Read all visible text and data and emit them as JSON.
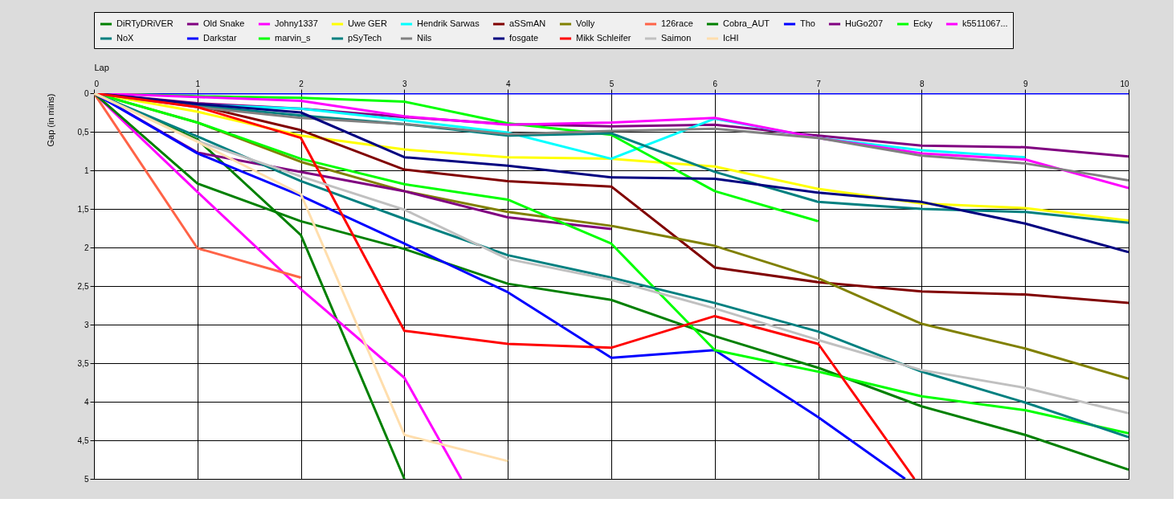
{
  "chart_data": {
    "type": "line",
    "xlabel": "Lap",
    "ylabel": "Gap (in mins)",
    "x": [
      0,
      1,
      2,
      3,
      4,
      5,
      6,
      7,
      8,
      9,
      10
    ],
    "xlim": [
      0,
      10
    ],
    "xticks": [
      0,
      1,
      2,
      3,
      4,
      5,
      6,
      7,
      8,
      9,
      10
    ],
    "ylim": [
      5,
      0
    ],
    "yticks": [
      0,
      {
        "value": 0.5,
        "label": "0,5"
      },
      1,
      {
        "value": 1.5,
        "label": "1,5"
      },
      2,
      {
        "value": 2.5,
        "label": "2,5"
      },
      3,
      {
        "value": 3.5,
        "label": "3,5"
      },
      4,
      {
        "value": 4.5,
        "label": "4,5"
      },
      5
    ],
    "grid": true,
    "legend": "top",
    "marker": "none",
    "line_style": "solid",
    "series": [
      {
        "name": "DiRTyDRiVER",
        "color": "#008000",
        "x": [
          0,
          1,
          2,
          3
        ],
        "values": [
          0,
          0.6,
          1.84,
          5
        ]
      },
      {
        "name": "Old Snake",
        "color": "#800080",
        "values": [
          0,
          0.13,
          0.2,
          0.31,
          0.4,
          0.43,
          0.41,
          0.55,
          0.68,
          0.7,
          0.82
        ]
      },
      {
        "name": "Johny1337",
        "color": "#ff00ff",
        "x": [
          0,
          1,
          2,
          3,
          3.55
        ],
        "values": [
          0,
          1.28,
          2.54,
          3.69,
          5
        ]
      },
      {
        "name": "Uwe GER",
        "color": "#ffff00",
        "values": [
          0,
          0.24,
          0.55,
          0.73,
          0.83,
          0.85,
          0.95,
          1.24,
          1.43,
          1.49,
          1.65
        ]
      },
      {
        "name": "Hendrik Sarwas",
        "color": "#00ffff",
        "values": [
          0,
          0.15,
          0.2,
          0.35,
          0.51,
          0.85,
          0.33,
          0.58,
          0.74,
          0.83,
          null
        ]
      },
      {
        "name": "aSSmAN",
        "color": "#800000",
        "values": [
          0,
          0.16,
          0.48,
          0.99,
          1.14,
          1.21,
          2.26,
          2.45,
          2.57,
          2.61,
          2.72
        ]
      },
      {
        "name": "Volly",
        "color": "#808000",
        "values": [
          0,
          0.38,
          0.89,
          1.27,
          1.54,
          1.72,
          1.98,
          2.4,
          2.99,
          3.31,
          3.7
        ]
      },
      {
        "name": "126race",
        "color": "#ff6347",
        "values": [
          0,
          2.01,
          2.39,
          null,
          null,
          null,
          null,
          null,
          null,
          null,
          null
        ]
      },
      {
        "name": "Cobra_AUT",
        "color": "#008000",
        "values": [
          0,
          1.17,
          1.66,
          2.02,
          2.47,
          2.68,
          3.15,
          3.56,
          4.06,
          4.43,
          4.88
        ]
      },
      {
        "name": "Tho",
        "color": "#0000ff",
        "values": [
          0,
          0,
          0,
          0,
          0,
          0,
          0,
          0,
          0,
          0,
          0
        ]
      },
      {
        "name": "HuGo207",
        "color": "#800080",
        "values": [
          0,
          0.77,
          1.02,
          1.27,
          1.61,
          1.76,
          null,
          null,
          null,
          null,
          null
        ]
      },
      {
        "name": "Ecky",
        "color": "#00ff00",
        "values": [
          0,
          0.04,
          0.06,
          0.11,
          0.39,
          0.54,
          1.27,
          1.66,
          null,
          null,
          null
        ]
      },
      {
        "name": "k5511067...",
        "color": "#ff00ff",
        "values": [
          0,
          0.05,
          0.1,
          0.3,
          0.41,
          0.38,
          0.32,
          0.58,
          0.78,
          0.86,
          1.23
        ]
      },
      {
        "name": "NoX",
        "color": "#008080",
        "values": [
          0,
          0.16,
          0.29,
          0.4,
          0.55,
          0.52,
          1.02,
          1.41,
          1.5,
          1.54,
          1.68
        ]
      },
      {
        "name": "Darkstar",
        "color": "#0000ff",
        "x": [
          0,
          1,
          2,
          3,
          4,
          5,
          6,
          7,
          7.84
        ],
        "values": [
          0,
          0.78,
          1.33,
          1.95,
          2.58,
          3.43,
          3.33,
          4.2,
          5
        ]
      },
      {
        "name": "marvin_s",
        "color": "#00ff00",
        "values": [
          0,
          0.38,
          0.85,
          1.18,
          1.38,
          1.95,
          3.33,
          3.61,
          3.93,
          4.11,
          4.41
        ]
      },
      {
        "name": "pSyTech",
        "color": "#008080",
        "values": [
          0,
          0.56,
          1.14,
          1.63,
          2.1,
          2.39,
          2.72,
          3.09,
          3.61,
          4.01,
          4.46
        ]
      },
      {
        "name": "Nils",
        "color": "#808080",
        "values": [
          0,
          0.18,
          0.32,
          0.4,
          0.53,
          0.49,
          0.46,
          0.58,
          0.81,
          0.91,
          1.13
        ]
      },
      {
        "name": "fosgate",
        "color": "#000080",
        "values": [
          0,
          0.14,
          0.25,
          0.83,
          0.94,
          1.09,
          1.11,
          1.29,
          1.41,
          1.69,
          2.06
        ]
      },
      {
        "name": "Mikk Schleifer",
        "color": "#ff0000",
        "x": [
          0,
          1,
          2,
          3,
          4,
          5,
          6,
          7,
          7.93
        ],
        "values": [
          0,
          0.18,
          0.58,
          3.08,
          3.25,
          3.3,
          2.89,
          3.25,
          5
        ]
      },
      {
        "name": "Saimon",
        "color": "#c0c0c0",
        "values": [
          0,
          0.62,
          1.08,
          1.51,
          2.15,
          2.42,
          2.79,
          3.2,
          3.59,
          3.82,
          4.15
        ]
      },
      {
        "name": "IcHI",
        "color": "#ffdead",
        "values": [
          0,
          0.63,
          1.31,
          4.43,
          4.77,
          null,
          null,
          null,
          null,
          null,
          null
        ]
      }
    ]
  }
}
